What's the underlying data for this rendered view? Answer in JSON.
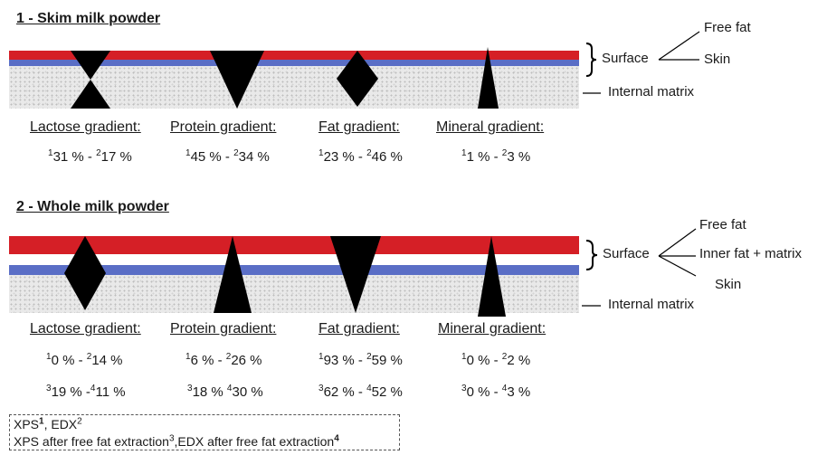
{
  "section1": {
    "title": "1 - Skim milk powder",
    "labels": {
      "lactose": "Lactose gradient:",
      "protein": "Protein gradient:",
      "fat": "Fat gradient:",
      "mineral": "Mineral gradient:"
    },
    "values": {
      "lactose": {
        "a_sup": "1",
        "a": "31 % - ",
        "b_sup": "2",
        "b": "17 %"
      },
      "protein": {
        "a_sup": "1",
        "a": "45 % - ",
        "b_sup": "2",
        "b": "34 %"
      },
      "fat": {
        "a_sup": "1",
        "a": "23 % - ",
        "b_sup": "2",
        "b": "46 %"
      },
      "mineral": {
        "a_sup": "1",
        "a": "1 % - ",
        "b_sup": "2",
        "b": "3 %"
      }
    },
    "side": {
      "surface": "Surface",
      "free_fat": "Free fat",
      "skin": "Skin",
      "internal": "Internal matrix"
    }
  },
  "section2": {
    "title": "2 - Whole milk powder",
    "labels": {
      "lactose": "Lactose gradient:",
      "protein": "Protein gradient:",
      "fat": "Fat gradient:",
      "mineral": "Mineral gradient:"
    },
    "values1": {
      "lactose": {
        "a_sup": "1",
        "a": "0 % - ",
        "b_sup": "2",
        "b": "14 %"
      },
      "protein": {
        "a_sup": "1",
        "a": "6 % - ",
        "b_sup": "2",
        "b": "26 %"
      },
      "fat": {
        "a_sup": "1",
        "a": "93 % - ",
        "b_sup": "2",
        "b": "59 %"
      },
      "mineral": {
        "a_sup": "1",
        "a": "0 % - ",
        "b_sup": "2",
        "b": "2 %"
      }
    },
    "values2": {
      "lactose": {
        "a_sup": "3",
        "a": "19 % -",
        "b_sup": "4",
        "b": "11 %"
      },
      "protein": {
        "a_sup": "3",
        "a": "18 % ",
        "b_sup": "4",
        "b": "30 %"
      },
      "fat": {
        "a_sup": "3",
        "a": "62 % - ",
        "b_sup": "4",
        "b": "52 %"
      },
      "mineral": {
        "a_sup": "3",
        "a": "0 % - ",
        "b_sup": "4",
        "b": "3 %"
      }
    },
    "side": {
      "free_fat": "Free fat",
      "surface": "Surface",
      "inner": "Inner fat + matrix",
      "skin": "Skin",
      "internal": "Internal matrix"
    }
  },
  "legend": {
    "line1_a": "XPS",
    "line1_a_sup": "1",
    "line1_b": ", EDX",
    "line1_b_sup": "2",
    "line2_a": "XPS after free fat extraction",
    "line2_a_sup": "3",
    "line2_b": ",EDX after free fat extraction",
    "line2_b_sup": "4"
  },
  "colors": {
    "red_layer": "#d51f26",
    "blue_layer": "#5a6ec6",
    "matrix": "#e9e9e9",
    "shapes": "#000000"
  }
}
